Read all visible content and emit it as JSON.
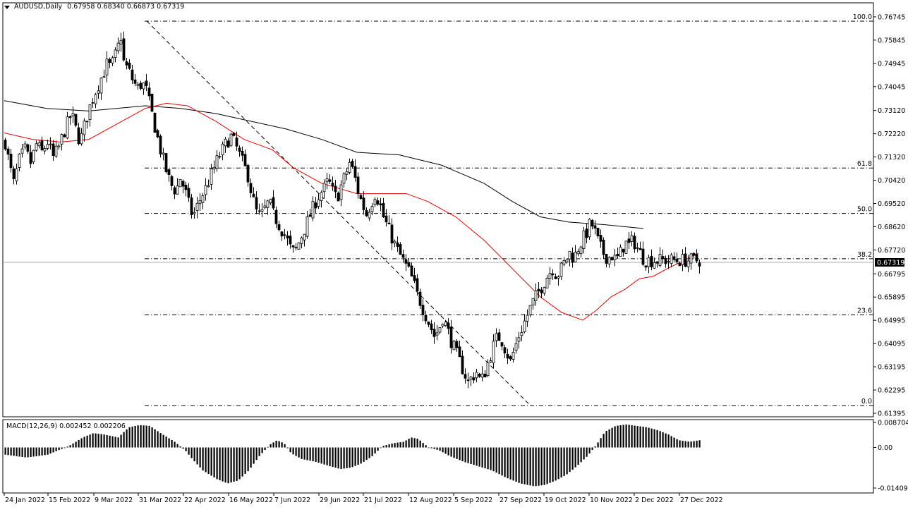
{
  "header": {
    "symbol": "AUDUSD,Daily",
    "ohlc": "0.67958 0.68340 0.66873 0.67319"
  },
  "chart_data": [
    {
      "type": "candlestick",
      "symbol": "AUDUSD",
      "timeframe": "Daily",
      "ohlc_last": {
        "open": 0.67958,
        "high": 0.6834,
        "low": 0.66873,
        "close": 0.67319
      },
      "current_price_label": "0.67319",
      "ylim": [
        0.61395,
        0.77125
      ],
      "price_ticks": [
        "0.76745",
        "0.75845",
        "0.74945",
        "0.74045",
        "0.73120",
        "0.72220",
        "0.71320",
        "0.70420",
        "0.69520",
        "0.68620",
        "0.67720",
        "0.66795",
        "0.65895",
        "0.64995",
        "0.64095",
        "0.63195",
        "0.62295",
        "0.61395"
      ],
      "time_ticks": [
        "24 Jan 2022",
        "15 Feb 2022",
        "9 Mar 2022",
        "31 Mar 2022",
        "22 Apr 2022",
        "16 May 2022",
        "7 Jun 2022",
        "29 Jun 2022",
        "21 Jul 2022",
        "12 Aug 2022",
        "5 Sep 2022",
        "27 Sep 2022",
        "19 Oct 2022",
        "10 Nov 2022",
        "2 Dec 2022",
        "27 Dec 2022"
      ],
      "fibonacci": {
        "high": 0.7658,
        "low": 0.6169,
        "levels": [
          {
            "label": "100.0",
            "ratio": 1.0
          },
          {
            "label": "61.8",
            "ratio": 0.618
          },
          {
            "label": "50.0",
            "ratio": 0.5
          },
          {
            "label": "38.2",
            "ratio": 0.382
          },
          {
            "label": "23.6",
            "ratio": 0.236
          },
          {
            "label": "0.0",
            "ratio": 0.0
          }
        ]
      },
      "close_path": [
        [
          0,
          0.719
        ],
        [
          6,
          0.71
        ],
        [
          12,
          0.703
        ],
        [
          20,
          0.712
        ],
        [
          28,
          0.716
        ],
        [
          36,
          0.711
        ],
        [
          44,
          0.718
        ],
        [
          52,
          0.715
        ],
        [
          60,
          0.719
        ],
        [
          68,
          0.713
        ],
        [
          76,
          0.717
        ],
        [
          82,
          0.722
        ],
        [
          88,
          0.726
        ],
        [
          94,
          0.73
        ],
        [
          100,
          0.724
        ],
        [
          106,
          0.719
        ],
        [
          112,
          0.725
        ],
        [
          118,
          0.731
        ],
        [
          124,
          0.736
        ],
        [
          130,
          0.74
        ],
        [
          138,
          0.745
        ],
        [
          144,
          0.749
        ],
        [
          150,
          0.748
        ],
        [
          158,
          0.754
        ],
        [
          164,
          0.76
        ],
        [
          168,
          0.75
        ],
        [
          176,
          0.746
        ],
        [
          182,
          0.742
        ],
        [
          188,
          0.74
        ],
        [
          194,
          0.742
        ],
        [
          200,
          0.739
        ],
        [
          206,
          0.732
        ],
        [
          212,
          0.725
        ],
        [
          218,
          0.718
        ],
        [
          224,
          0.712
        ],
        [
          230,
          0.706
        ],
        [
          236,
          0.702
        ],
        [
          242,
          0.7
        ],
        [
          248,
          0.705
        ],
        [
          254,
          0.701
        ],
        [
          260,
          0.695
        ],
        [
          266,
          0.69
        ],
        [
          272,
          0.694
        ],
        [
          278,
          0.698
        ],
        [
          284,
          0.701
        ],
        [
          290,
          0.705
        ],
        [
          296,
          0.709
        ],
        [
          302,
          0.713
        ],
        [
          308,
          0.716
        ],
        [
          314,
          0.719
        ],
        [
          320,
          0.721
        ],
        [
          326,
          0.718
        ],
        [
          332,
          0.714
        ],
        [
          338,
          0.71
        ],
        [
          344,
          0.706
        ],
        [
          350,
          0.698
        ],
        [
          356,
          0.692
        ],
        [
          362,
          0.69
        ],
        [
          368,
          0.693
        ],
        [
          374,
          0.696
        ],
        [
          380,
          0.691
        ],
        [
          386,
          0.688
        ],
        [
          392,
          0.685
        ],
        [
          398,
          0.682
        ],
        [
          404,
          0.678
        ],
        [
          410,
          0.676
        ],
        [
          416,
          0.68
        ],
        [
          422,
          0.684
        ],
        [
          428,
          0.688
        ],
        [
          434,
          0.692
        ],
        [
          440,
          0.696
        ],
        [
          446,
          0.699
        ],
        [
          452,
          0.701
        ],
        [
          458,
          0.704
        ],
        [
          464,
          0.7
        ],
        [
          470,
          0.697
        ],
        [
          476,
          0.702
        ],
        [
          482,
          0.706
        ],
        [
          488,
          0.711
        ],
        [
          494,
          0.707
        ],
        [
          500,
          0.7
        ],
        [
          506,
          0.695
        ],
        [
          512,
          0.691
        ],
        [
          518,
          0.695
        ],
        [
          524,
          0.699
        ],
        [
          530,
          0.696
        ],
        [
          536,
          0.69
        ],
        [
          542,
          0.686
        ],
        [
          548,
          0.682
        ],
        [
          554,
          0.678
        ],
        [
          560,
          0.675
        ],
        [
          566,
          0.672
        ],
        [
          572,
          0.669
        ],
        [
          578,
          0.665
        ],
        [
          584,
          0.66
        ],
        [
          590,
          0.656
        ],
        [
          596,
          0.652
        ],
        [
          602,
          0.648
        ],
        [
          608,
          0.644
        ],
        [
          614,
          0.646
        ],
        [
          620,
          0.651
        ],
        [
          626,
          0.647
        ],
        [
          632,
          0.642
        ],
        [
          638,
          0.638
        ],
        [
          644,
          0.634
        ],
        [
          650,
          0.63
        ],
        [
          656,
          0.626
        ],
        [
          662,
          0.628
        ],
        [
          668,
          0.63
        ],
        [
          674,
          0.626
        ],
        [
          680,
          0.63
        ],
        [
          686,
          0.635
        ],
        [
          692,
          0.64
        ],
        [
          698,
          0.644
        ],
        [
          704,
          0.642
        ],
        [
          710,
          0.638
        ],
        [
          716,
          0.634
        ],
        [
          722,
          0.639
        ],
        [
          728,
          0.644
        ],
        [
          734,
          0.648
        ],
        [
          740,
          0.652
        ],
        [
          746,
          0.656
        ],
        [
          752,
          0.659
        ],
        [
          758,
          0.662
        ],
        [
          764,
          0.665
        ],
        [
          770,
          0.668
        ],
        [
          776,
          0.67
        ],
        [
          782,
          0.667
        ],
        [
          788,
          0.67
        ],
        [
          794,
          0.673
        ],
        [
          800,
          0.676
        ],
        [
          806,
          0.674
        ],
        [
          812,
          0.678
        ],
        [
          818,
          0.681
        ],
        [
          824,
          0.684
        ],
        [
          830,
          0.688
        ],
        [
          836,
          0.684
        ],
        [
          842,
          0.679
        ],
        [
          848,
          0.676
        ],
        [
          854,
          0.674
        ],
        [
          860,
          0.675
        ],
        [
          866,
          0.673
        ],
        [
          872,
          0.676
        ],
        [
          878,
          0.68
        ],
        [
          884,
          0.679
        ],
        [
          890,
          0.681
        ],
        [
          896,
          0.678
        ],
        [
          902,
          0.675
        ],
        [
          906,
          0.6732
        ]
      ],
      "ma_slow": [
        [
          0,
          0.735
        ],
        [
          60,
          0.732
        ],
        [
          120,
          0.731
        ],
        [
          200,
          0.733
        ],
        [
          250,
          0.732
        ],
        [
          300,
          0.73
        ],
        [
          350,
          0.727
        ],
        [
          400,
          0.724
        ],
        [
          450,
          0.72
        ],
        [
          500,
          0.715
        ],
        [
          560,
          0.714
        ],
        [
          620,
          0.71
        ],
        [
          680,
          0.703
        ],
        [
          720,
          0.696
        ],
        [
          760,
          0.69
        ],
        [
          800,
          0.688
        ],
        [
          850,
          0.687
        ],
        [
          906,
          0.6855
        ]
      ],
      "ma_fast": [
        [
          0,
          0.7225
        ],
        [
          40,
          0.72
        ],
        [
          80,
          0.719
        ],
        [
          120,
          0.72
        ],
        [
          160,
          0.726
        ],
        [
          200,
          0.732
        ],
        [
          230,
          0.734
        ],
        [
          260,
          0.733
        ],
        [
          300,
          0.727
        ],
        [
          340,
          0.72
        ],
        [
          380,
          0.716
        ],
        [
          410,
          0.709
        ],
        [
          450,
          0.703
        ],
        [
          500,
          0.699
        ],
        [
          540,
          0.699
        ],
        [
          570,
          0.699
        ],
        [
          600,
          0.696
        ],
        [
          640,
          0.69
        ],
        [
          680,
          0.681
        ],
        [
          720,
          0.67
        ],
        [
          760,
          0.659
        ],
        [
          790,
          0.653
        ],
        [
          820,
          0.65
        ],
        [
          840,
          0.654
        ],
        [
          860,
          0.659
        ],
        [
          880,
          0.662
        ],
        [
          900,
          0.666
        ],
        [
          920,
          0.667
        ],
        [
          940,
          0.67
        ],
        [
          970,
          0.674
        ],
        [
          984,
          0.676
        ]
      ],
      "macd": {
        "label": "MACD(12,26,9) 0.002452 0.002206",
        "ylim": [
          -0.014091,
          0.008704
        ],
        "ticks": [
          "0.008704",
          "0.00",
          "-0.014091"
        ],
        "hist_path": [
          [
            0,
            -0.0025
          ],
          [
            30,
            -0.0035
          ],
          [
            60,
            -0.0025
          ],
          [
            90,
            0.0005
          ],
          [
            110,
            0.0035
          ],
          [
            125,
            0.005
          ],
          [
            140,
            0.0045
          ],
          [
            160,
            0.0035
          ],
          [
            175,
            0.007
          ],
          [
            190,
            0.0078
          ],
          [
            205,
            0.0075
          ],
          [
            220,
            0.005
          ],
          [
            240,
            0.002
          ],
          [
            255,
            -0.001
          ],
          [
            265,
            -0.004
          ],
          [
            280,
            -0.008
          ],
          [
            300,
            -0.011
          ],
          [
            315,
            -0.0125
          ],
          [
            330,
            -0.0115
          ],
          [
            345,
            -0.008
          ],
          [
            360,
            -0.003
          ],
          [
            375,
            0.001
          ],
          [
            385,
            0.0025
          ],
          [
            395,
            0.0015
          ],
          [
            405,
            -0.002
          ],
          [
            420,
            -0.004
          ],
          [
            440,
            -0.005
          ],
          [
            460,
            -0.0065
          ],
          [
            475,
            -0.0075
          ],
          [
            490,
            -0.007
          ],
          [
            505,
            -0.0055
          ],
          [
            520,
            -0.003
          ],
          [
            535,
            0.0005
          ],
          [
            550,
            0.0015
          ],
          [
            565,
            0.002
          ],
          [
            575,
            0.0035
          ],
          [
            585,
            0.003
          ],
          [
            600,
            0.0
          ],
          [
            615,
            -0.001
          ],
          [
            630,
            -0.003
          ],
          [
            650,
            -0.005
          ],
          [
            670,
            -0.0065
          ],
          [
            690,
            -0.008
          ],
          [
            710,
            -0.0105
          ],
          [
            730,
            -0.0125
          ],
          [
            750,
            -0.0135
          ],
          [
            765,
            -0.013
          ],
          [
            780,
            -0.0115
          ],
          [
            795,
            -0.0095
          ],
          [
            810,
            -0.0065
          ],
          [
            825,
            -0.003
          ],
          [
            838,
            0.001
          ],
          [
            850,
            0.0055
          ],
          [
            865,
            0.0075
          ],
          [
            880,
            0.008
          ],
          [
            895,
            0.0075
          ],
          [
            910,
            0.007
          ],
          [
            925,
            0.006
          ],
          [
            940,
            0.0045
          ],
          [
            955,
            0.0025
          ],
          [
            970,
            0.002
          ],
          [
            984,
            0.0025
          ]
        ],
        "signal_path": [
          [
            0,
            -0.002
          ],
          [
            100,
            0.0025
          ],
          [
            200,
            0.006
          ],
          [
            300,
            -0.0095
          ],
          [
            400,
            0.001
          ],
          [
            500,
            -0.006
          ],
          [
            580,
            0.0025
          ],
          [
            700,
            -0.0095
          ],
          [
            760,
            -0.0125
          ],
          [
            840,
            0.0005
          ],
          [
            890,
            0.007
          ],
          [
            984,
            0.0022
          ]
        ]
      }
    }
  ]
}
